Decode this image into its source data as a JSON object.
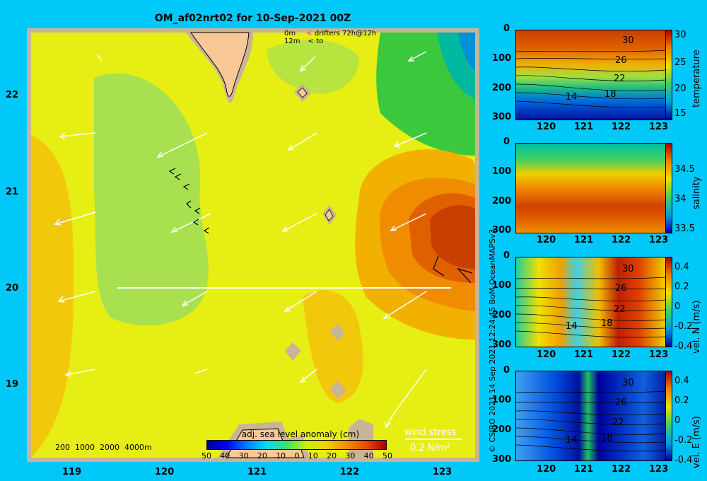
{
  "title": "OM_af02nrt02 for 10-Sep-2021 00Z",
  "legend_top": {
    "row1_depth": "0m",
    "row1_text": "drifters 72h@12h",
    "row2_depth": "12m",
    "row2_text": "to"
  },
  "map": {
    "lat_ticks": [
      "22",
      "21",
      "20",
      "19"
    ],
    "lon_ticks": [
      "119",
      "120",
      "121",
      "122",
      "123"
    ],
    "isobaths": "200  1000  2000  4000m",
    "colorbar_label": "adj. sea level anomaly (cm)",
    "colorbar_ticks": [
      "50",
      "40",
      "30",
      "20",
      "10",
      "0",
      "10",
      "20",
      "30",
      "40",
      "50"
    ],
    "wind_label": "wind stress",
    "wind_scale": "0.2 N/m²"
  },
  "panels": [
    {
      "ylabel": "temperature",
      "yticks": [
        "0",
        "100",
        "200",
        "300"
      ],
      "cticks": [
        "30",
        "25",
        "20",
        "15"
      ],
      "contours": [
        "30",
        "26",
        "22",
        "18",
        "14"
      ]
    },
    {
      "ylabel": "salinity",
      "yticks": [
        "0",
        "100",
        "200",
        "300"
      ],
      "cticks": [
        "34.5",
        "34",
        "33.5"
      ],
      "contours": []
    },
    {
      "ylabel": "vel. N (m/s)",
      "yticks": [
        "0",
        "100",
        "200",
        "300"
      ],
      "cticks": [
        "0.4",
        "0.2",
        "0",
        "-0.2",
        "-0.4"
      ],
      "contours": [
        "30",
        "26",
        "22",
        "18",
        "14"
      ]
    },
    {
      "ylabel": "vel. E (m/s)",
      "yticks": [
        "0",
        "100",
        "200",
        "300"
      ],
      "cticks": [
        "0.4",
        "0.2",
        "0",
        "-0.2",
        "-0.4"
      ],
      "contours": [
        "30",
        "26",
        "22",
        "18",
        "14"
      ]
    }
  ],
  "panel_xticks": [
    "120",
    "121",
    "122",
    "123"
  ],
  "credit": "© CSIRO 2021   14 Sep 2021 12:24:45 BoM OceanMAPSv3",
  "colors": {
    "background": "#00c8f8",
    "land": "#f8c896",
    "shelf": "#c8b496"
  }
}
